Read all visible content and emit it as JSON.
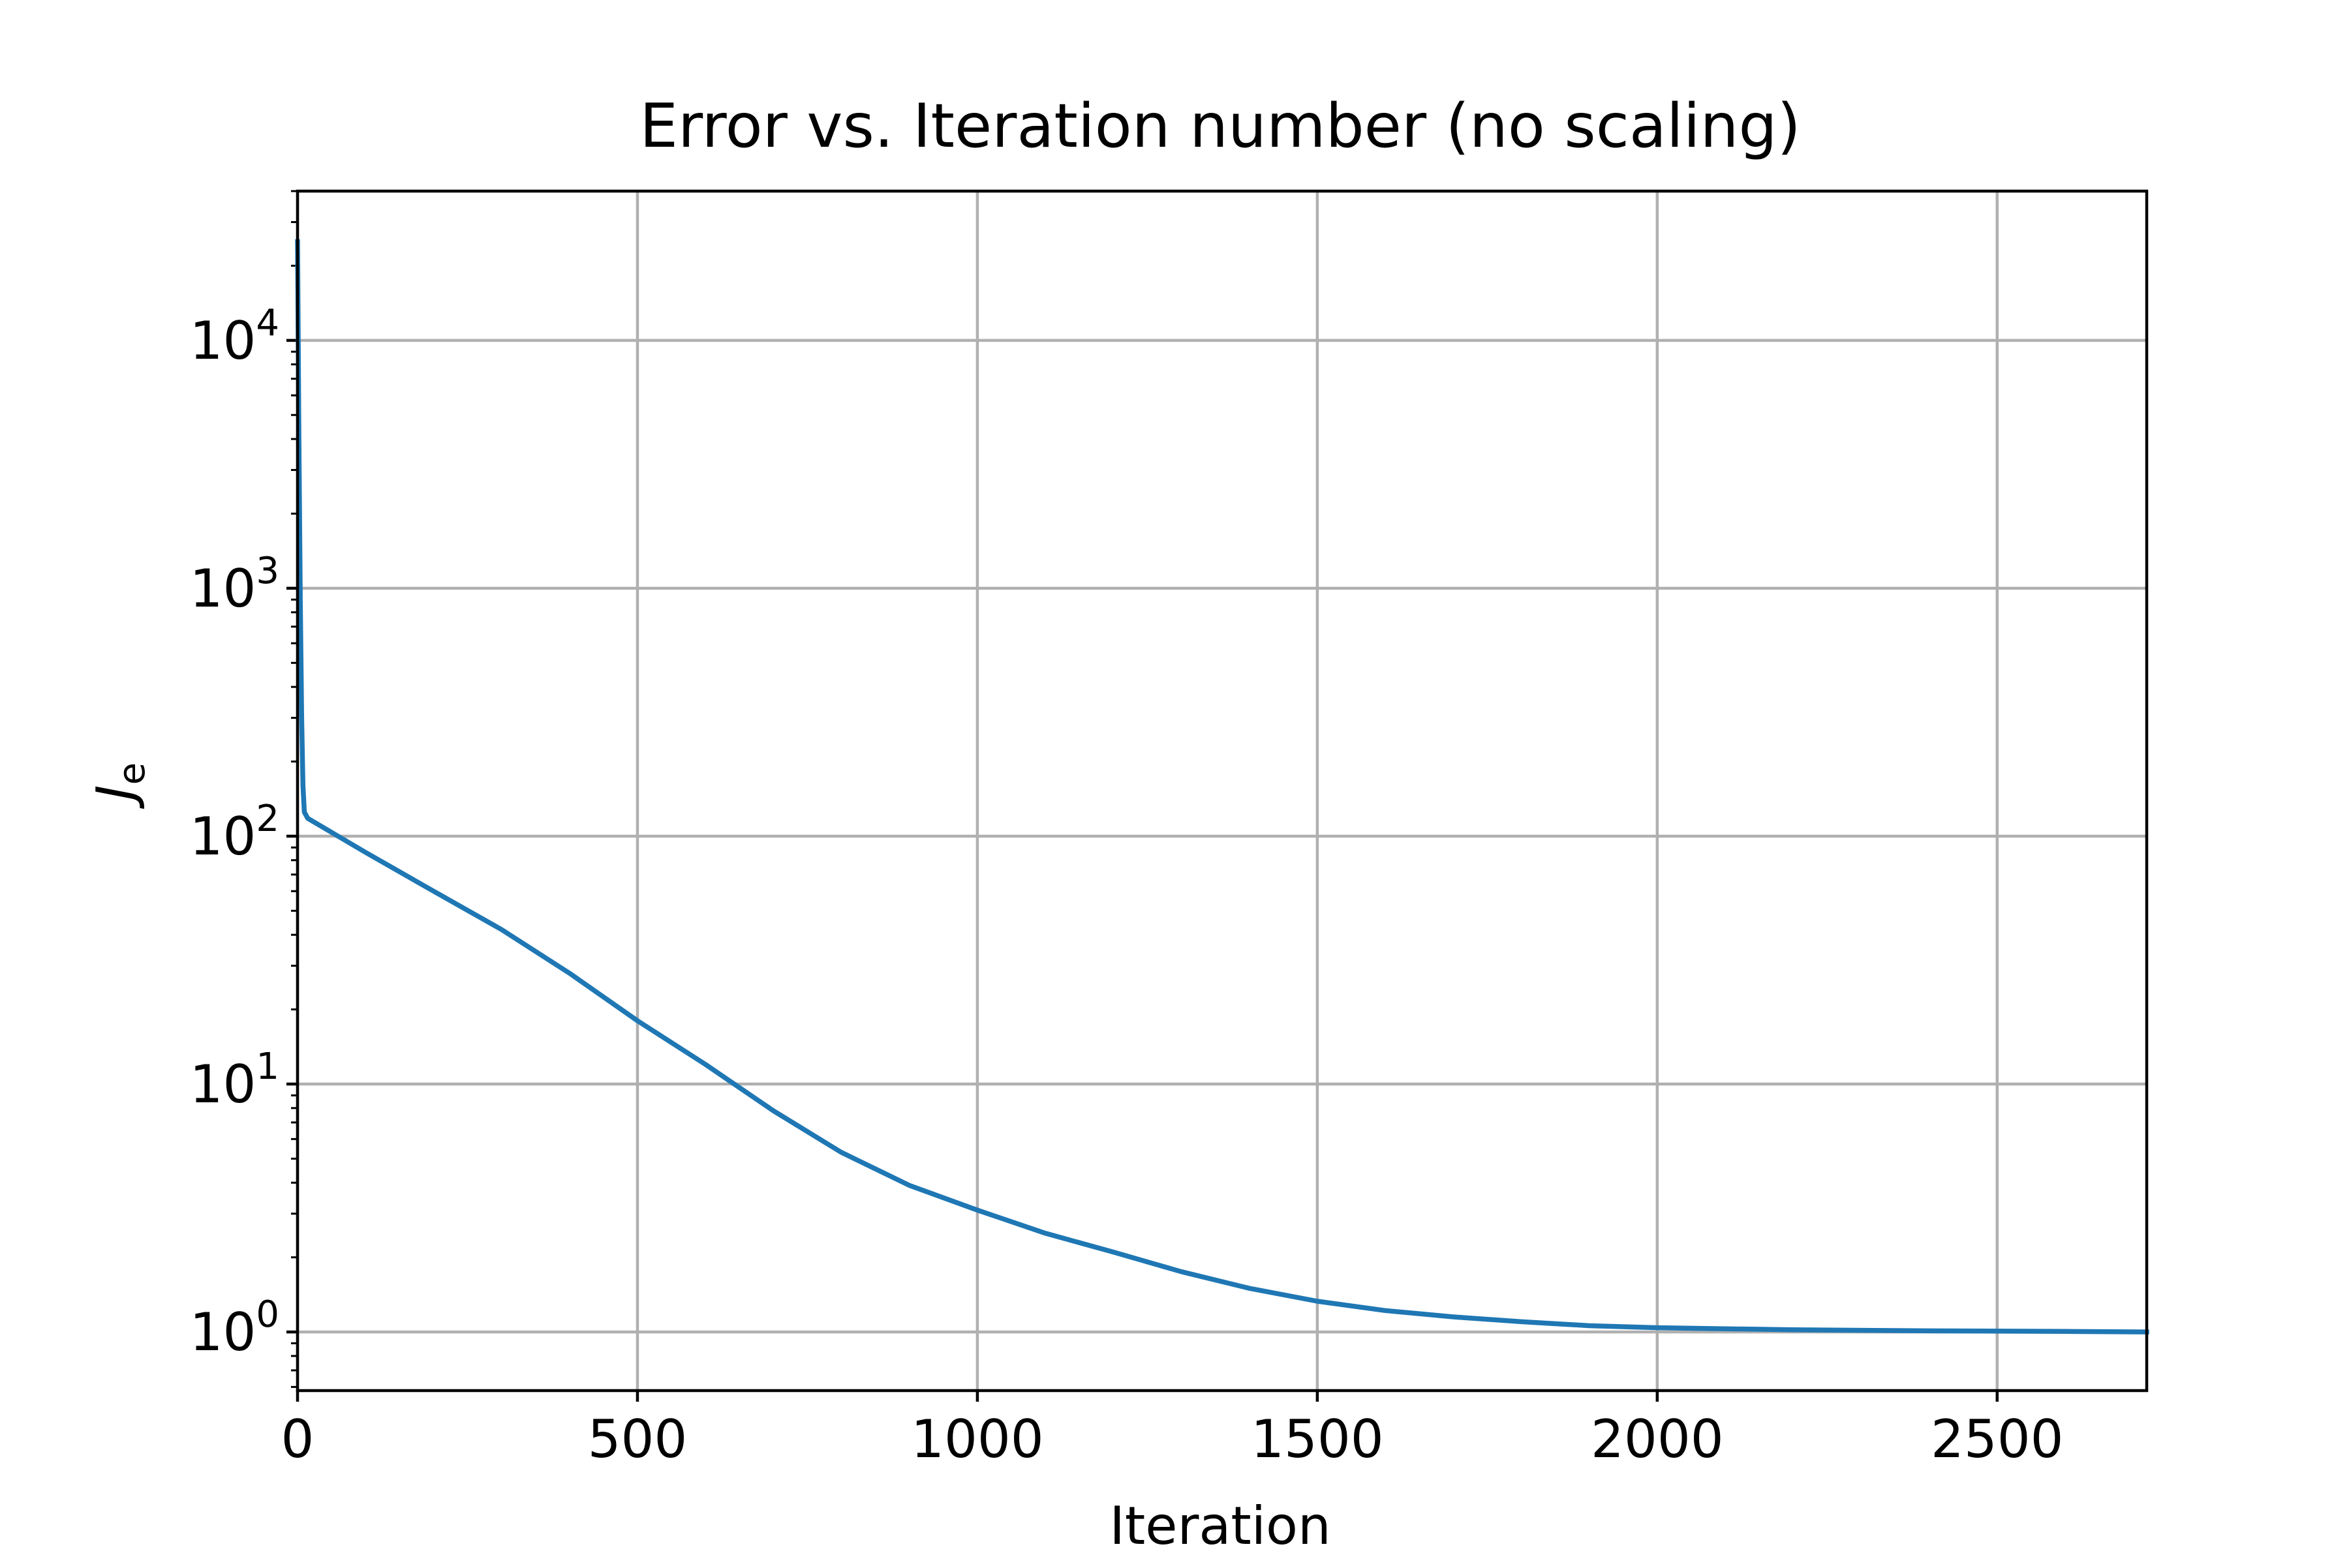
{
  "chart_data": {
    "type": "line",
    "title": "Error vs. Iteration number (no scaling)",
    "xlabel": "Iteration",
    "ylabel": {
      "main": "J",
      "sub": "e"
    },
    "yscale": "log",
    "grid": true,
    "xlim": [
      0,
      2720
    ],
    "ylim": [
      0.58,
      40000
    ],
    "x_ticks": [
      0,
      500,
      1000,
      1500,
      2000,
      2500
    ],
    "x_tick_labels": [
      "0",
      "500",
      "1000",
      "1500",
      "2000",
      "2500"
    ],
    "y_ticks": [
      1,
      10,
      100,
      1000,
      10000
    ],
    "y_tick_labels": [
      {
        "base": "10",
        "exp": "0"
      },
      {
        "base": "10",
        "exp": "1"
      },
      {
        "base": "10",
        "exp": "2"
      },
      {
        "base": "10",
        "exp": "3"
      },
      {
        "base": "10",
        "exp": "4"
      }
    ],
    "series": [
      {
        "color": "#1f77b4",
        "x": [
          0,
          2,
          4,
          6,
          8,
          10,
          15,
          100,
          200,
          300,
          400,
          500,
          600,
          700,
          800,
          900,
          1000,
          1100,
          1200,
          1300,
          1400,
          1500,
          1600,
          1700,
          1800,
          1900,
          2000,
          2200,
          2400,
          2600,
          2720
        ],
        "y": [
          25000,
          4000,
          900,
          300,
          160,
          125,
          118,
          86,
          60,
          42,
          28,
          18,
          12,
          7.8,
          5.3,
          3.9,
          3.1,
          2.5,
          2.1,
          1.75,
          1.5,
          1.33,
          1.22,
          1.15,
          1.1,
          1.06,
          1.04,
          1.02,
          1.01,
          1.005,
          1.0
        ]
      }
    ]
  }
}
